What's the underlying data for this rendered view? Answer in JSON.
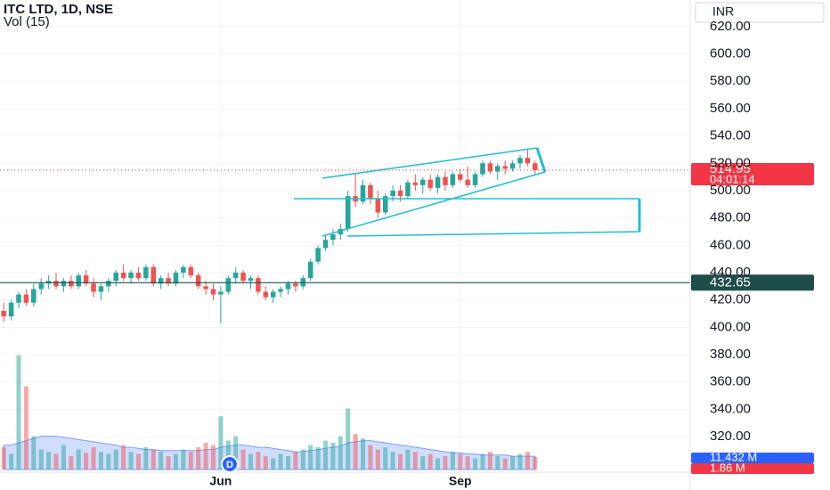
{
  "chart_data": {
    "type": "candlestick",
    "title": "ITC LTD, 1D, NSE",
    "subtitle": "Vol (15)",
    "currency": "INR",
    "categories": [
      null,
      null,
      null,
      null,
      null,
      null,
      null,
      null,
      null,
      null,
      null,
      null,
      null,
      null,
      null,
      null,
      null,
      null,
      null,
      null,
      null,
      null,
      null,
      null,
      null,
      null,
      null,
      null,
      null,
      "Jun",
      null,
      null,
      null,
      null,
      null,
      null,
      null,
      null,
      null,
      null,
      null,
      null,
      null,
      null,
      null,
      null,
      null,
      null,
      null,
      null,
      null,
      null,
      null,
      null,
      null,
      null,
      null,
      null,
      null,
      null,
      null,
      "Sep",
      null,
      null,
      null,
      null,
      null,
      null,
      null,
      null,
      null,
      null
    ],
    "open": [
      412,
      408,
      418,
      424,
      418,
      428,
      432,
      434,
      430,
      434,
      430,
      438,
      432,
      426,
      430,
      434,
      440,
      436,
      440,
      436,
      444,
      432,
      436,
      432,
      440,
      444,
      438,
      430,
      428,
      424,
      426,
      436,
      440,
      434,
      436,
      426,
      422,
      426,
      428,
      432,
      430,
      436,
      448,
      458,
      464,
      468,
      472,
      496,
      492,
      504,
      494,
      484,
      496,
      500,
      496,
      506,
      504,
      508,
      502,
      510,
      504,
      512,
      508,
      504,
      512,
      520,
      514,
      518,
      516,
      520,
      524,
      520
    ],
    "high": [
      418,
      420,
      426,
      428,
      432,
      436,
      438,
      440,
      436,
      438,
      440,
      442,
      436,
      432,
      436,
      442,
      446,
      442,
      444,
      446,
      446,
      438,
      440,
      442,
      446,
      446,
      440,
      434,
      432,
      430,
      438,
      444,
      442,
      438,
      438,
      430,
      428,
      430,
      434,
      434,
      438,
      450,
      460,
      468,
      472,
      476,
      500,
      512,
      508,
      506,
      500,
      498,
      504,
      504,
      508,
      512,
      510,
      512,
      512,
      514,
      514,
      516,
      518,
      514,
      522,
      522,
      520,
      522,
      522,
      526,
      530,
      522
    ],
    "low": [
      404,
      405,
      414,
      416,
      415,
      424,
      428,
      428,
      426,
      428,
      428,
      430,
      422,
      420,
      426,
      430,
      434,
      432,
      434,
      434,
      430,
      428,
      430,
      430,
      436,
      436,
      428,
      424,
      420,
      403,
      424,
      432,
      432,
      428,
      424,
      420,
      418,
      422,
      424,
      426,
      428,
      434,
      446,
      456,
      460,
      464,
      470,
      488,
      490,
      490,
      480,
      482,
      492,
      492,
      494,
      500,
      498,
      500,
      498,
      500,
      502,
      506,
      502,
      502,
      510,
      512,
      508,
      512,
      514,
      516,
      518,
      512
    ],
    "close": [
      408,
      418,
      424,
      418,
      428,
      432,
      434,
      430,
      434,
      430,
      438,
      432,
      426,
      430,
      434,
      440,
      436,
      440,
      436,
      444,
      432,
      436,
      432,
      440,
      444,
      438,
      430,
      428,
      424,
      426,
      436,
      440,
      434,
      436,
      426,
      422,
      426,
      428,
      432,
      430,
      436,
      448,
      458,
      464,
      468,
      472,
      496,
      492,
      504,
      494,
      484,
      496,
      500,
      496,
      506,
      504,
      508,
      502,
      510,
      504,
      512,
      508,
      504,
      512,
      520,
      514,
      518,
      516,
      520,
      524,
      520,
      515
    ],
    "volume": [
      20,
      14,
      103,
      75,
      30,
      18,
      16,
      14,
      22,
      12,
      18,
      15,
      20,
      16,
      14,
      18,
      22,
      16,
      14,
      20,
      18,
      16,
      12,
      14,
      18,
      16,
      20,
      24,
      22,
      48,
      26,
      30,
      18,
      14,
      16,
      12,
      10,
      14,
      12,
      16,
      18,
      22,
      20,
      26,
      24,
      30,
      55,
      32,
      28,
      22,
      18,
      20,
      16,
      14,
      18,
      16,
      12,
      14,
      10,
      12,
      16,
      14,
      12,
      10,
      14,
      16,
      12,
      10,
      12,
      14,
      16,
      11.432
    ],
    "volume_ma": [
      22,
      22,
      24,
      26,
      28,
      30,
      30,
      30,
      29,
      28,
      27,
      26,
      25,
      24,
      23,
      22,
      20,
      20,
      19,
      18,
      18,
      17,
      17,
      17,
      17,
      17,
      17,
      18,
      18,
      20,
      21,
      22,
      22,
      21,
      20,
      20,
      19,
      18,
      17,
      16,
      16,
      17,
      18,
      19,
      20,
      21,
      24,
      25,
      26,
      26,
      25,
      24,
      23,
      22,
      21,
      20,
      19,
      18,
      17,
      16,
      15,
      15,
      14,
      14,
      13,
      13,
      13,
      13,
      12,
      12,
      12,
      12
    ],
    "up_color": "#26a69a",
    "down_color": "#ef5350",
    "ylim": [
      294,
      639.5
    ],
    "yticks": [
      {
        "value": 320,
        "label": "320.00"
      },
      {
        "value": 340,
        "label": "340.00"
      },
      {
        "value": 360,
        "label": "360.00"
      },
      {
        "value": 380,
        "label": "380.00"
      },
      {
        "value": 400,
        "label": "400.00"
      },
      {
        "value": 420,
        "label": "420.00"
      },
      {
        "value": 440,
        "label": "440.00"
      },
      {
        "value": 460,
        "label": "460.00"
      },
      {
        "value": 480,
        "label": "480.00"
      },
      {
        "value": 500,
        "label": "500.00"
      },
      {
        "value": 520,
        "label": "520.00"
      },
      {
        "value": 540,
        "label": "540.00"
      },
      {
        "value": 560,
        "label": "560.00"
      },
      {
        "value": 580,
        "label": "580.00"
      },
      {
        "value": 600,
        "label": "600.00"
      },
      {
        "value": 620,
        "label": "620.00"
      }
    ],
    "y2lim": [
      0,
      110
    ],
    "grid": true,
    "last_price": {
      "value": 514.95,
      "label": "514.95",
      "countdown": "04:01:14"
    },
    "level_line": {
      "value": 432.65,
      "label": "432.65"
    },
    "volume_labels": [
      {
        "value": 11.432,
        "label": "11.432 M"
      },
      {
        "value": 1.86,
        "label": "1.86 M"
      }
    ]
  }
}
